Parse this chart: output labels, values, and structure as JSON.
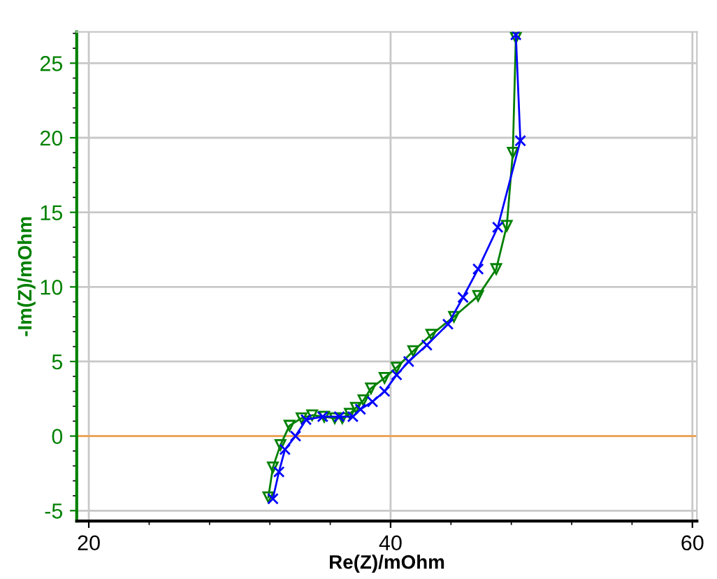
{
  "chart_data": {
    "type": "line",
    "xlabel": "Re(Z)/mOhm",
    "ylabel": "-Im(Z)/mOhm",
    "xlim": [
      19.2,
      60.3
    ],
    "ylim": [
      -5.7,
      27.1
    ],
    "xticks": [
      20,
      40,
      60
    ],
    "yticks": [
      -5,
      0,
      5,
      10,
      15,
      20,
      25
    ],
    "grid": true,
    "legend": false,
    "series": [
      {
        "color": "#008000",
        "marker": "triangle",
        "x": [
          31.9,
          32.2,
          32.7,
          33.3,
          34.1,
          34.8,
          35.6,
          36.3,
          36.8,
          37.3,
          37.7,
          38.2,
          38.7,
          39.6,
          40.4,
          41.5,
          42.7,
          44.2,
          45.8,
          47.0,
          47.7,
          48.1,
          48.3
        ],
        "values": [
          -4.1,
          -2.1,
          -0.6,
          0.7,
          1.2,
          1.4,
          1.3,
          1.2,
          1.2,
          1.5,
          1.9,
          2.4,
          3.2,
          3.9,
          4.6,
          5.7,
          6.8,
          8.0,
          9.4,
          11.2,
          14.1,
          19.0,
          26.7
        ]
      },
      {
        "color": "#0000ff",
        "marker": "cross",
        "x": [
          32.2,
          32.6,
          33.0,
          33.7,
          34.4,
          35.5,
          36.6,
          37.5,
          38.0,
          38.8,
          39.6,
          40.4,
          41.2,
          42.4,
          43.8,
          44.8,
          45.8,
          47.1,
          48.6,
          48.3
        ],
        "values": [
          -4.2,
          -2.4,
          -0.9,
          0.0,
          1.1,
          1.3,
          1.3,
          1.3,
          1.8,
          2.3,
          3.0,
          4.1,
          5.0,
          6.1,
          7.5,
          9.3,
          11.2,
          14.0,
          19.8,
          26.9
        ]
      }
    ],
    "ref_lines": [
      {
        "axis": "y",
        "value": 0,
        "color": "#f0a050"
      }
    ]
  }
}
